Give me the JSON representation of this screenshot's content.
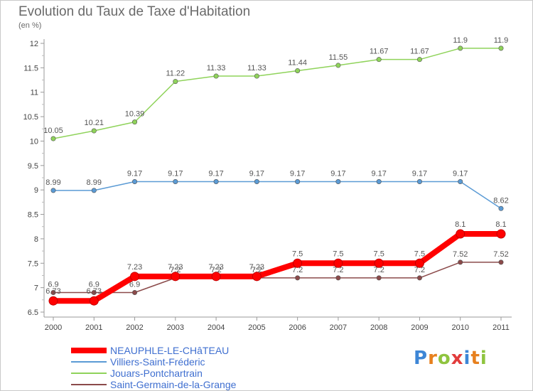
{
  "title": "Evolution du Taux de Taxe d'Habitation",
  "unit_label": "(en %)",
  "chart_data": {
    "type": "line",
    "title": "Evolution du Taux de Taxe d'Habitation",
    "ylabel": "(en %)",
    "xlabel": "",
    "x": [
      "2000",
      "2001",
      "2002",
      "2003",
      "2004",
      "2005",
      "2006",
      "2007",
      "2008",
      "2009",
      "2010",
      "2011"
    ],
    "ylim": [
      6.5,
      12
    ],
    "yticks": [
      "6.5",
      "7",
      "7.5",
      "8",
      "8.5",
      "9",
      "9.5",
      "10",
      "10.5",
      "11",
      "11.5",
      "12"
    ],
    "grid": false,
    "legend_position": "bottom-left",
    "series": [
      {
        "name": "NEAUPHLE-LE-CHâTEAU",
        "color": "#ff0000",
        "values": [
          6.73,
          6.73,
          7.23,
          7.23,
          7.23,
          7.23,
          7.5,
          7.5,
          7.5,
          7.5,
          8.1,
          8.1
        ],
        "labels": [
          "6.73",
          "6.73",
          "7.23",
          "7.23",
          "7.23",
          "7.23",
          "7.5",
          "7.5",
          "7.5",
          "7.5",
          "8.1",
          "8.1"
        ]
      },
      {
        "name": "Villiers-Saint-Fréderic",
        "color": "#5b9bd5",
        "values": [
          8.99,
          8.99,
          9.17,
          9.17,
          9.17,
          9.17,
          9.17,
          9.17,
          9.17,
          9.17,
          9.17,
          8.62
        ],
        "labels": [
          "8.99",
          "8.99",
          "9.17",
          "9.17",
          "9.17",
          "9.17",
          "9.17",
          "9.17",
          "9.17",
          "9.17",
          "9.17",
          "8.62"
        ]
      },
      {
        "name": "Jouars-Pontchartrain",
        "color": "#8fd35a",
        "values": [
          10.05,
          10.21,
          10.39,
          11.22,
          11.33,
          11.33,
          11.44,
          11.55,
          11.67,
          11.67,
          11.9,
          11.9
        ],
        "labels": [
          "10.05",
          "10.21",
          "10.39",
          "11.22",
          "11.33",
          "11.33",
          "11.44",
          "11.55",
          "11.67",
          "11.67",
          "11.9",
          "11.9"
        ]
      },
      {
        "name": "Saint-Germain-de-la-Grange",
        "color": "#8b4a4a",
        "values": [
          6.9,
          6.9,
          6.9,
          7.2,
          7.2,
          7.2,
          7.2,
          7.2,
          7.2,
          7.2,
          7.52,
          7.52
        ],
        "labels": [
          "6.9",
          "6.9",
          "6.9",
          "7.2",
          "7.2",
          "7.2",
          "7.2",
          "7.2",
          "7.2",
          "7.2",
          "7.52",
          "7.52"
        ]
      }
    ]
  },
  "logo": {
    "text": "Proxiti",
    "letter_colors": [
      "#3d86d6",
      "#e7801e",
      "#8fc43f",
      "#e23c3c",
      "#3d86d6",
      "#e7801e",
      "#8fc43f"
    ]
  }
}
